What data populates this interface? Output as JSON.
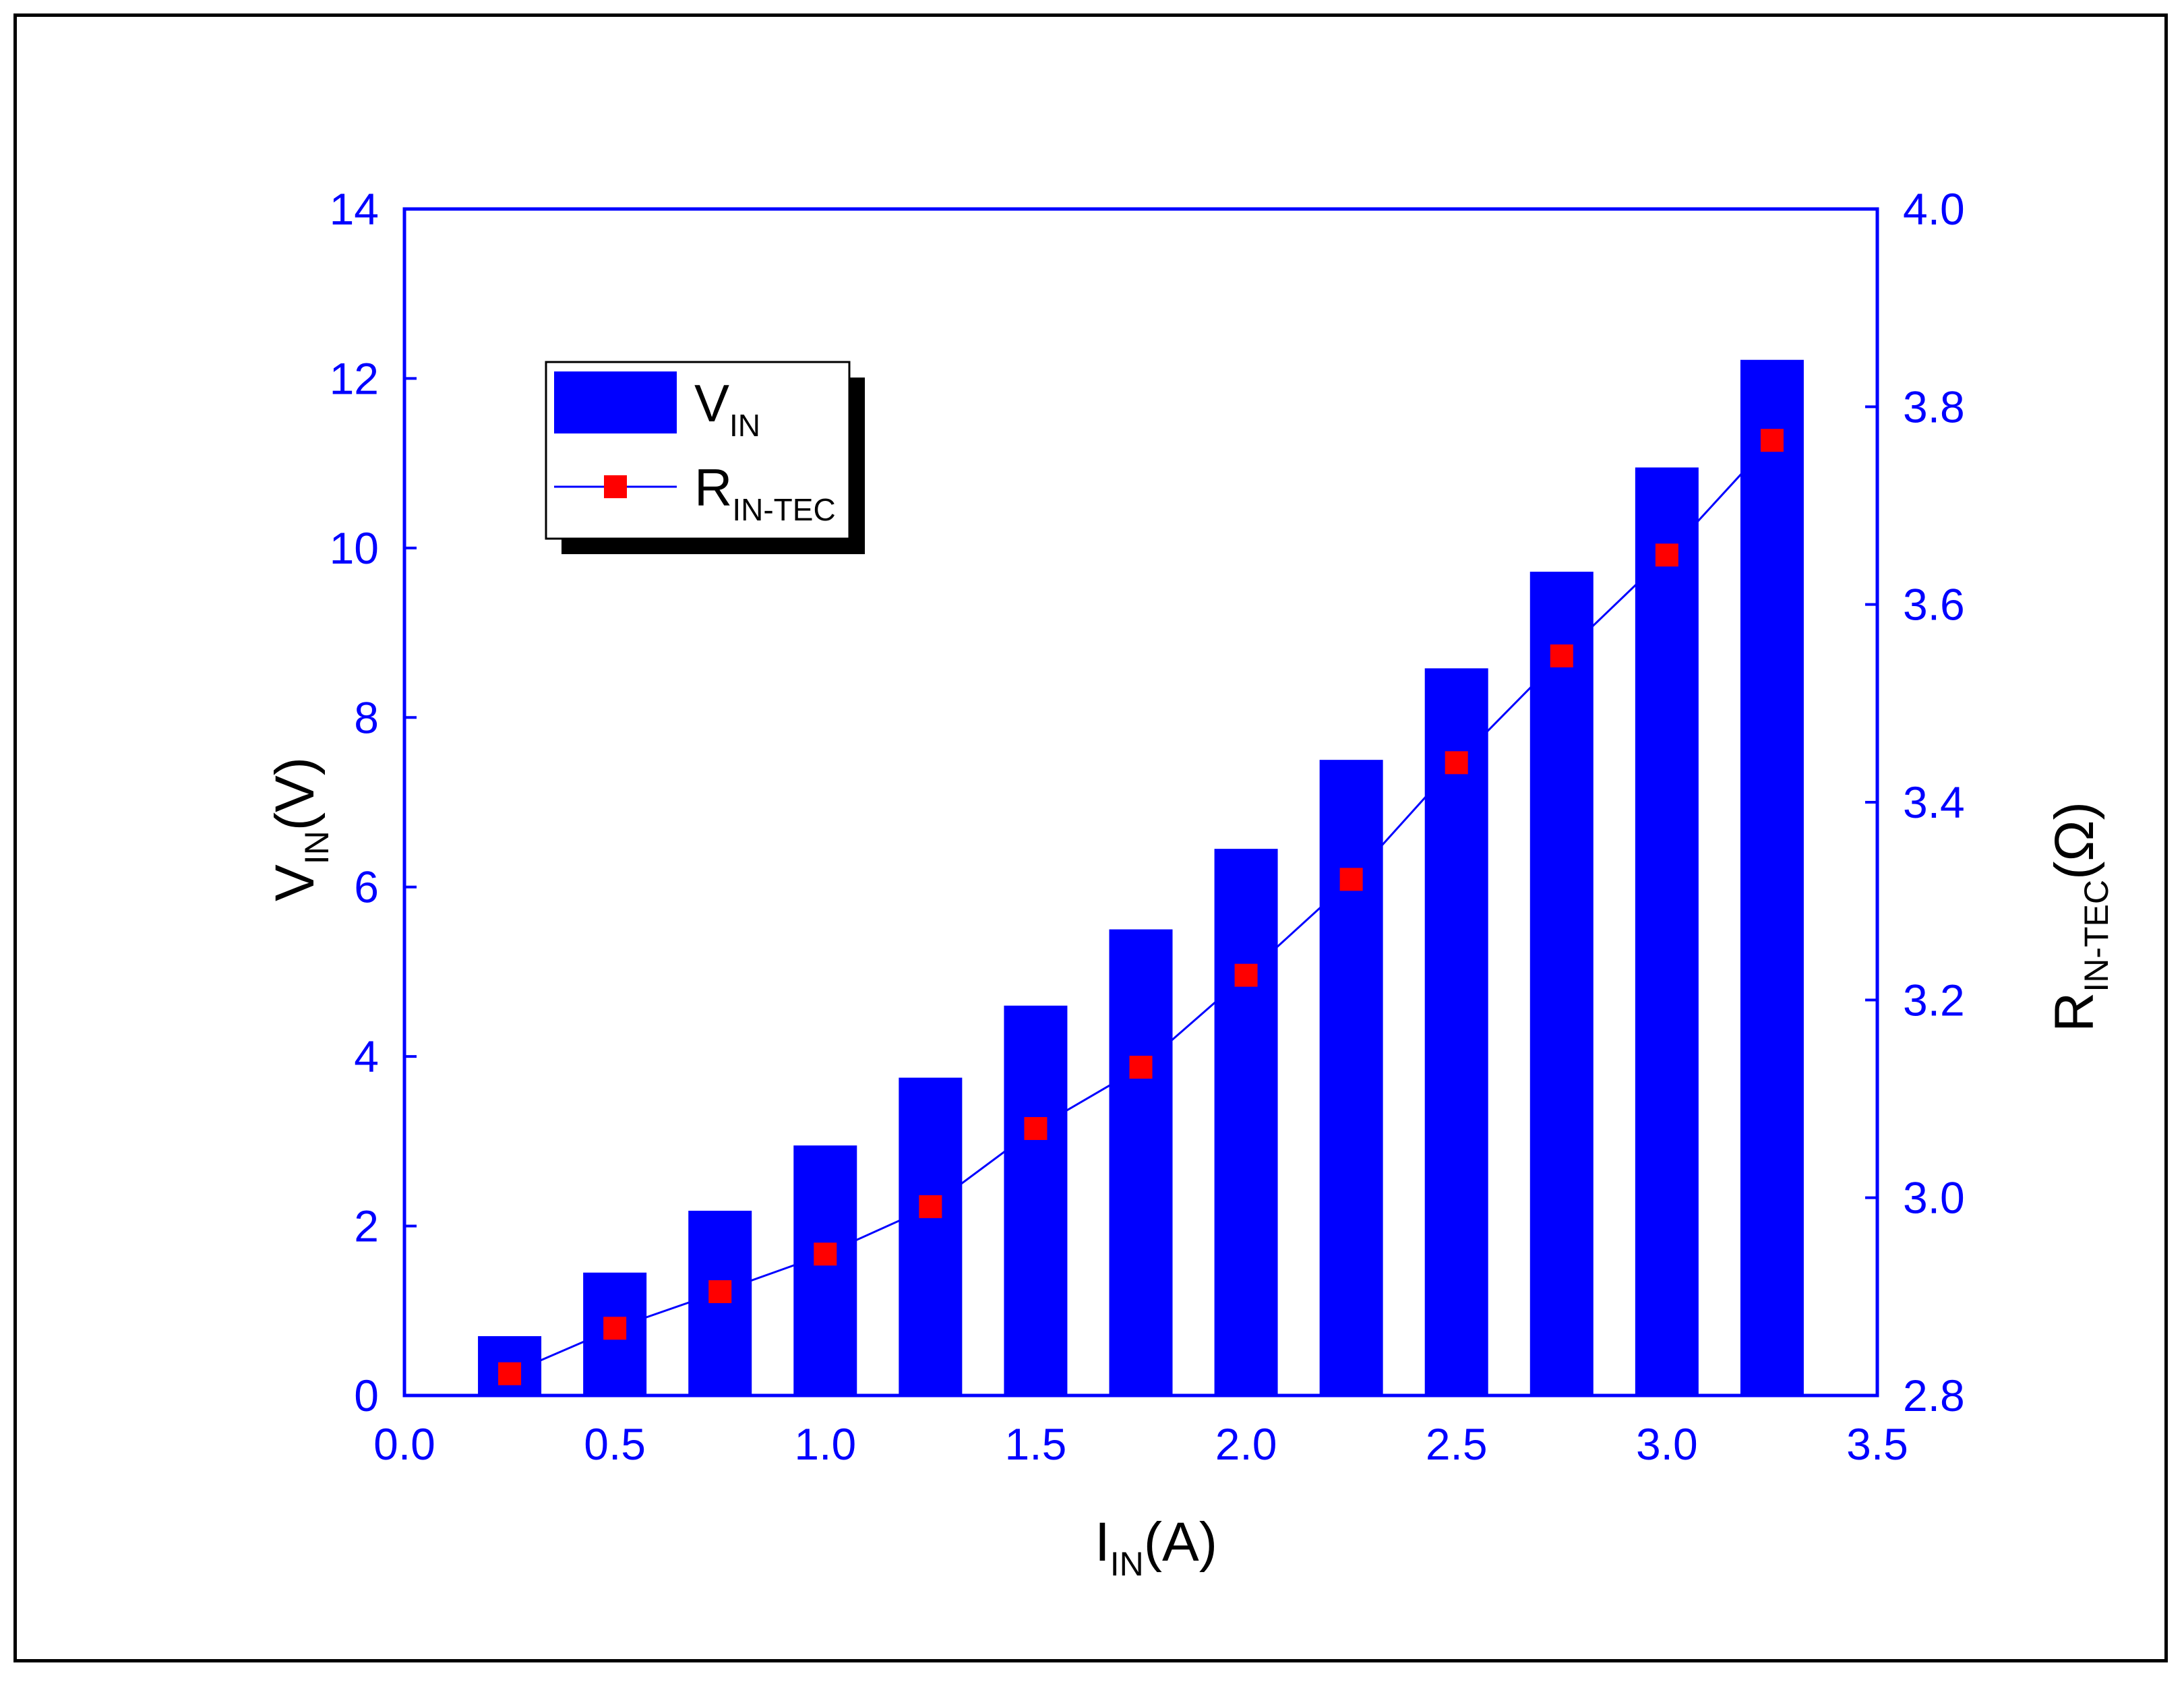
{
  "chart_data": {
    "type": "bar",
    "x": [
      0.25,
      0.5,
      0.75,
      1.0,
      1.25,
      1.5,
      1.75,
      2.0,
      2.25,
      2.5,
      2.75,
      3.0,
      3.25
    ],
    "series": [
      {
        "name": "V_IN",
        "label_main": "V",
        "label_sub": "IN",
        "type": "bar",
        "axis": "left",
        "values": [
          0.7,
          1.45,
          2.18,
          2.95,
          3.75,
          4.6,
          5.5,
          6.45,
          7.5,
          8.58,
          9.72,
          10.95,
          12.22
        ]
      },
      {
        "name": "R_IN-TEC",
        "label_main": "R",
        "label_sub": "IN-TEC",
        "type": "line+marker",
        "axis": "right",
        "values": [
          2.822,
          2.868,
          2.905,
          2.943,
          2.991,
          3.07,
          3.132,
          3.225,
          3.322,
          3.44,
          3.548,
          3.65,
          3.766
        ]
      }
    ],
    "xlim": [
      0.0,
      3.5
    ],
    "ylim": [
      0,
      14
    ],
    "y2lim": [
      2.8,
      4.0
    ],
    "xticks": [
      "0.0",
      "0.5",
      "1.0",
      "1.5",
      "2.0",
      "2.5",
      "3.0",
      "3.5"
    ],
    "yticks": [
      "0",
      "2",
      "4",
      "6",
      "8",
      "10",
      "12",
      "14"
    ],
    "y2ticks": [
      "2.8",
      "3.0",
      "3.2",
      "3.4",
      "3.6",
      "3.8",
      "4.0"
    ],
    "xlabel_main": "I",
    "xlabel_sub": "IN",
    "xlabel_tail": "(A)",
    "ylabel_main": "V",
    "ylabel_sub": "IN",
    "ylabel_tail": "(V)",
    "y2label_main": "R",
    "y2label_sub": "IN-TEC",
    "y2label_tail": "(Ω)",
    "legend_position": "top-left",
    "grid": false,
    "colors": {
      "axis": "#0000ff",
      "bar": "#0000ff",
      "line": "#0000ff",
      "marker": "#ff0000",
      "title_text": "#000000"
    }
  }
}
